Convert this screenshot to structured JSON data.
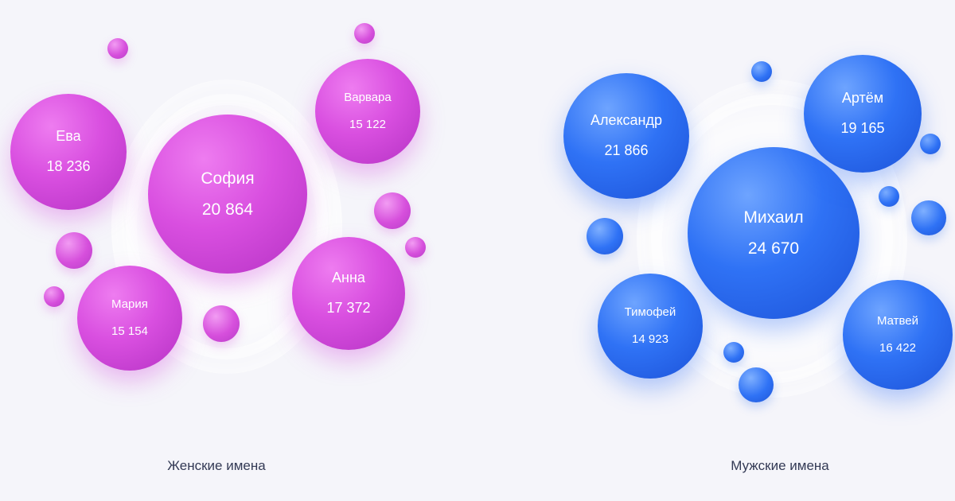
{
  "chart_data": [
    {
      "type": "bubble",
      "title": "",
      "caption": "Женские имена",
      "color": "#d94fe0",
      "points": [
        {
          "name": "София",
          "value_label": "20 864",
          "value": 20864
        },
        {
          "name": "Ева",
          "value_label": "18 236",
          "value": 18236
        },
        {
          "name": "Анна",
          "value_label": "17 372",
          "value": 17372
        },
        {
          "name": "Мария",
          "value_label": "15 154",
          "value": 15154
        },
        {
          "name": "Варвара",
          "value_label": "15 122",
          "value": 15122
        }
      ]
    },
    {
      "type": "bubble",
      "title": "",
      "caption": "Мужские имена",
      "color": "#2f72f5",
      "points": [
        {
          "name": "Михаил",
          "value_label": "24 670",
          "value": 24670
        },
        {
          "name": "Александр",
          "value_label": "21 866",
          "value": 21866
        },
        {
          "name": "Артём",
          "value_label": "19 165",
          "value": 19165
        },
        {
          "name": "Матвей",
          "value_label": "16 422",
          "value": 16422
        },
        {
          "name": "Тимофей",
          "value_label": "14 923",
          "value": 14923
        }
      ]
    }
  ]
}
